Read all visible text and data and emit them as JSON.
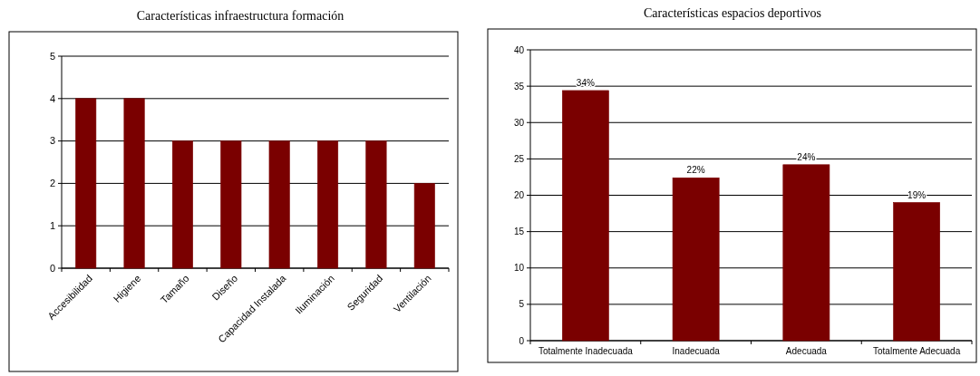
{
  "chart_data": [
    {
      "type": "bar",
      "title": "Características infraestructura formación",
      "categories": [
        "Accesibilidad",
        "Higiene",
        "Tamaño",
        "Diseño",
        "Capacidad Instalada",
        "Iluminación",
        "Seguridad",
        "Ventilación"
      ],
      "values": [
        4,
        4,
        3,
        3,
        3,
        3,
        3,
        2
      ],
      "color": "#7a0000",
      "ylim": [
        0,
        5
      ],
      "yticks": [
        0,
        1,
        2,
        3,
        4,
        5
      ],
      "grid": "y"
    },
    {
      "type": "bar",
      "title": "Características espacios deportivos",
      "categories": [
        "Totalmente Inadecuada",
        "Inadecuada",
        "Adecuada",
        "Totalmente Adecuada"
      ],
      "values": [
        34.4,
        22.4,
        24.2,
        19.0
      ],
      "value_labels": [
        "34%",
        "22%",
        "24%",
        "19%"
      ],
      "color": "#7a0000",
      "ylim": [
        0,
        40
      ],
      "yticks": [
        0,
        5,
        10,
        15,
        20,
        25,
        30,
        35,
        40
      ],
      "grid": "y"
    }
  ]
}
